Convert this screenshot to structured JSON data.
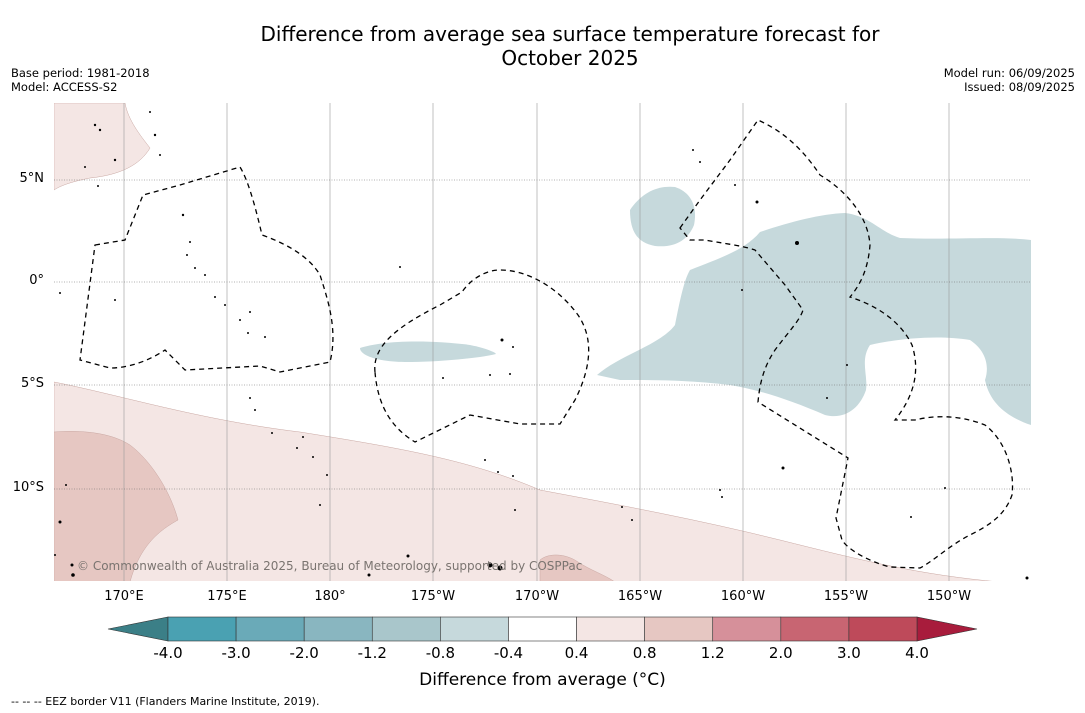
{
  "title_line1": "Difference from average sea surface temperature forecast for",
  "title_line2": "October 2025",
  "meta_left": [
    "Base period: 1981-2018",
    "Model: ACCESS-S2"
  ],
  "meta_right": [
    "Model run: 06/09/2025",
    "Issued: 08/09/2025"
  ],
  "lat_ticks": [
    "5°N",
    "0°",
    "5°S",
    "10°S"
  ],
  "lon_ticks": [
    "170°E",
    "175°E",
    "180°",
    "175°W",
    "170°W",
    "165°W",
    "160°W",
    "155°W",
    "150°W"
  ],
  "copyright": "© Commonwealth of Australia 2025, Bureau of Meteorology, supported by COSPPac",
  "colorbar": {
    "labels": [
      "-4.0",
      "-3.0",
      "-2.0",
      "-1.2",
      "-0.8",
      "-0.4",
      "0.4",
      "0.8",
      "1.2",
      "2.0",
      "3.0",
      "4.0"
    ],
    "colors": [
      "#3b7f87",
      "#4aa1b2",
      "#6aaab8",
      "#89b6c0",
      "#a9c6cb",
      "#c6d9dc",
      "#ffffff",
      "#f4e6e4",
      "#e6c7c2",
      "#d6909a",
      "#c86572",
      "#be4a5a",
      "#a81c3c"
    ],
    "title": "Difference from average (°C)"
  },
  "footnote": "--  --  -- EEZ border V11 (Flanders Marine Institute, 2019)."
}
